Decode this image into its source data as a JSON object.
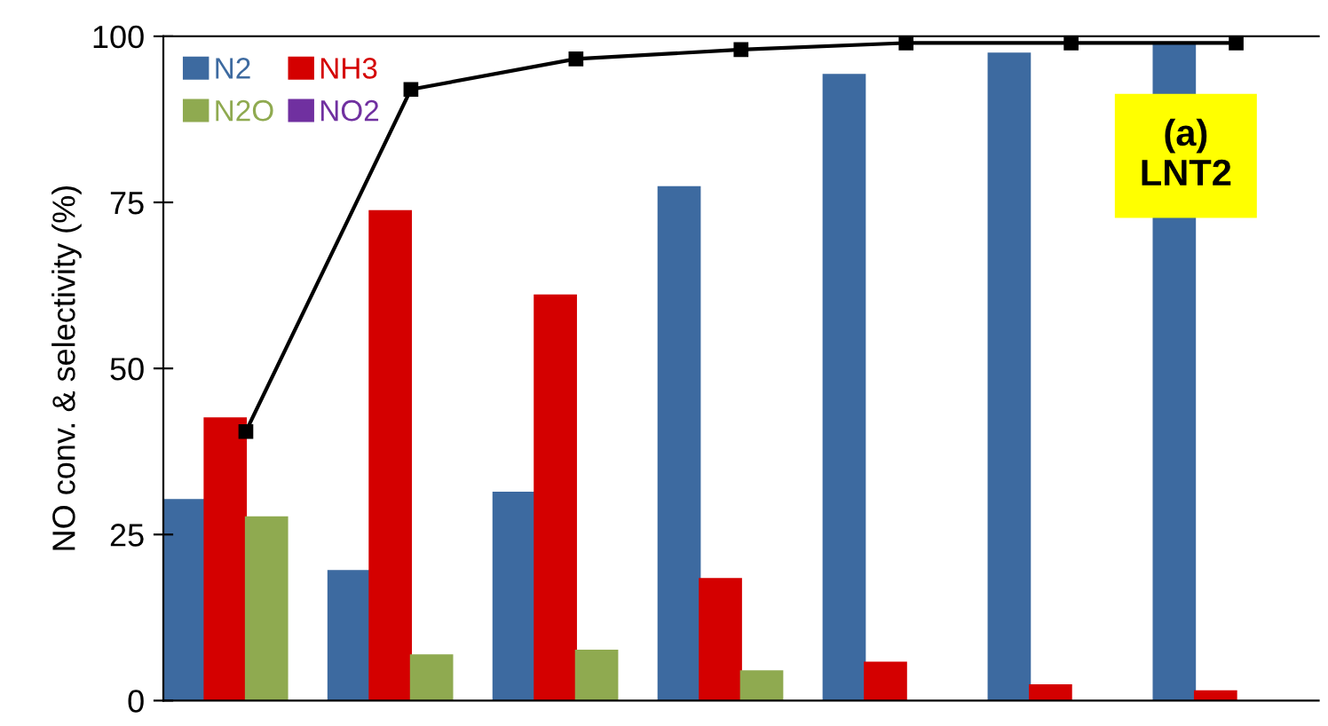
{
  "chart_data": {
    "type": "bar",
    "ylabel": "NO conv. & selectivity (%)",
    "categories": [
      null,
      null,
      null,
      null,
      null,
      null,
      null
    ],
    "series": [
      {
        "name": "N2",
        "color": "#3d6aa0",
        "values": [
          30.2,
          19.5,
          31.3,
          77.3,
          94.2,
          97.4,
          98.7
        ]
      },
      {
        "name": "NH3",
        "color": "#d40000",
        "values": [
          42.5,
          73.7,
          61,
          18.3,
          5.7,
          2.3,
          1.4
        ]
      },
      {
        "name": "N2O",
        "color": "#8faa50",
        "values": [
          27.6,
          6.8,
          7.5,
          4.4,
          null,
          null,
          null
        ]
      },
      {
        "name": "NO2",
        "color": "#7030a0",
        "values": [
          null,
          null,
          null,
          null,
          null,
          null,
          null
        ]
      },
      {
        "type": "line",
        "color": "#000000",
        "marker": "square",
        "values": [
          40.5,
          92,
          96.6,
          98,
          99,
          99,
          99
        ]
      }
    ],
    "ylim": [
      0,
      100
    ],
    "yticks": [
      0,
      25,
      50,
      75,
      100
    ],
    "grid": false,
    "legend": "top left",
    "tick_labels": "y",
    "annotations": [
      "(a)\nLNT2"
    ]
  }
}
